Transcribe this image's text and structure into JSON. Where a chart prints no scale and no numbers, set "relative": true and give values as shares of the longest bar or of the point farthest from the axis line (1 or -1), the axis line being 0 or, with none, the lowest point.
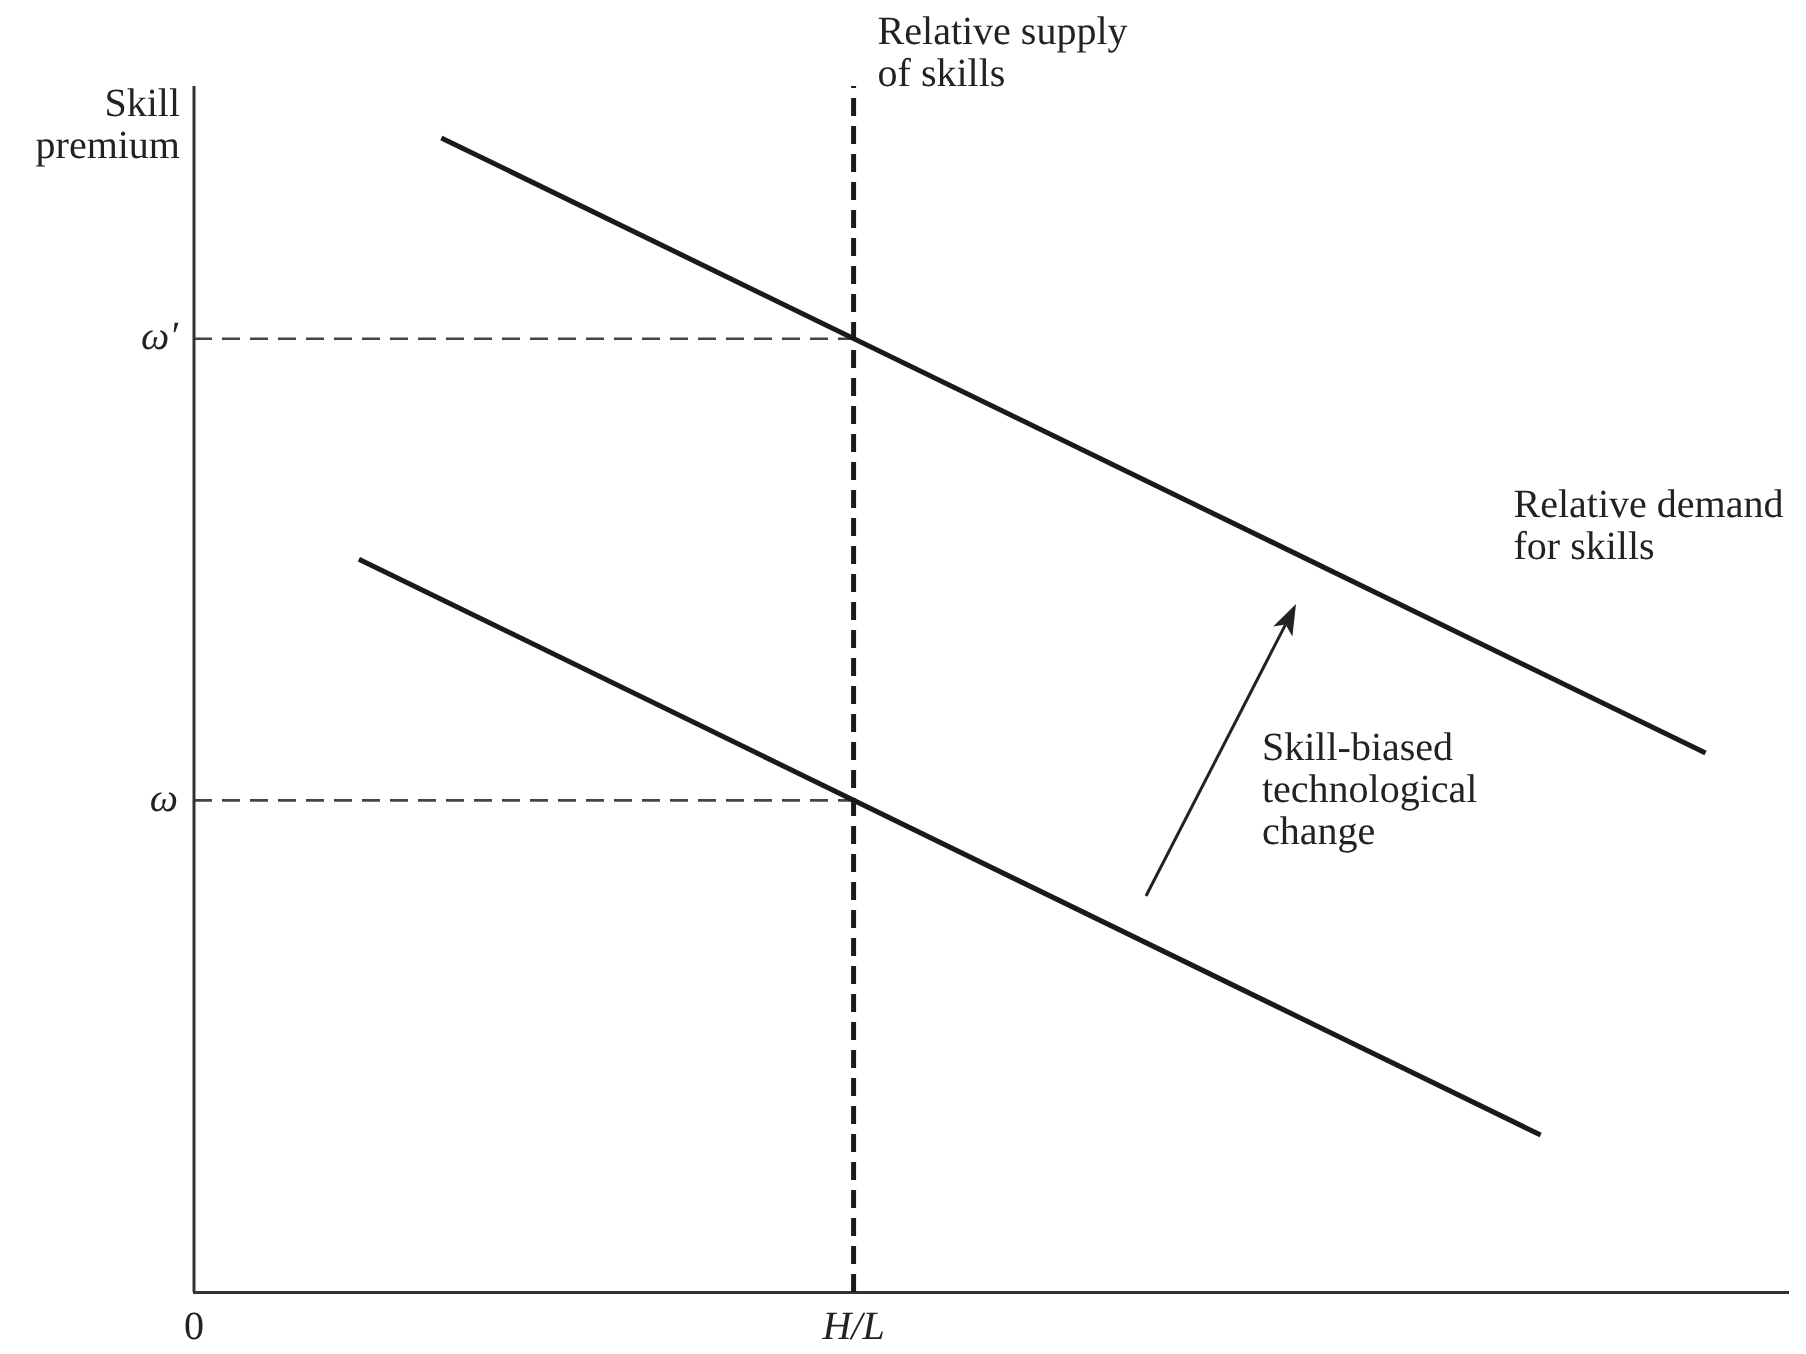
{
  "chart_data": {
    "type": "line",
    "ylabel": "Skill premium",
    "relative": true,
    "marker": "none",
    "categories": [
      "0",
      null,
      null,
      null,
      null,
      null,
      null,
      null,
      null,
      null,
      null,
      null,
      null,
      null,
      null,
      null,
      null,
      null,
      null,
      null,
      null,
      null,
      null,
      null,
      "H/L",
      null,
      null,
      null,
      null,
      null,
      null,
      null,
      null,
      null,
      null,
      null,
      null,
      null,
      null,
      null,
      null,
      null,
      null,
      null,
      null,
      null,
      null,
      null,
      null,
      null,
      null,
      null,
      null,
      null,
      null,
      null,
      null,
      null,
      null
    ],
    "annotations": [
      "Skill-biased technological change"
    ],
    "ref_lines": [
      {
        "axis": "x",
        "value": "H/L",
        "label": "Relative supply of skills",
        "line_style": "dashed",
        "color": "#1a1a1a"
      }
    ],
    "series": [
      {
        "name": "Relative demand for skills",
        "color": "#1a1a1a",
        "values": [
          null,
          null,
          null,
          null,
          null,
          null,
          null,
          null,
          null,
          1,
          null,
          null,
          null,
          null,
          null,
          null,
          null,
          null,
          null,
          null,
          null,
          null,
          null,
          null,
          null,
          null,
          null,
          null,
          null,
          null,
          null,
          null,
          null,
          null,
          null,
          null,
          null,
          null,
          null,
          null,
          null,
          null,
          null,
          null,
          null,
          null,
          null,
          null,
          null,
          null,
          null,
          null,
          null,
          null,
          null,
          0.467,
          null,
          null,
          null
        ]
      },
      {
        "color": "#1a1a1a",
        "values": [
          null,
          null,
          null,
          null,
          null,
          null,
          0.635,
          null,
          null,
          null,
          null,
          null,
          null,
          null,
          null,
          null,
          null,
          null,
          null,
          null,
          null,
          null,
          null,
          null,
          null,
          null,
          null,
          null,
          null,
          null,
          null,
          null,
          null,
          null,
          null,
          null,
          null,
          null,
          null,
          null,
          null,
          null,
          null,
          null,
          null,
          null,
          null,
          null,
          null,
          0.136,
          null,
          null,
          null,
          null,
          null,
          null,
          null,
          null,
          null
        ]
      },
      {
        "name": "ω′",
        "color": "#444444",
        "line_style": "dashed",
        "values": [
          0.826,
          null,
          null,
          null,
          null,
          null,
          null,
          null,
          null,
          null,
          null,
          null,
          null,
          null,
          null,
          null,
          null,
          null,
          null,
          null,
          null,
          null,
          null,
          null,
          0.826,
          null,
          null,
          null,
          null,
          null,
          null,
          null,
          null,
          null,
          null,
          null,
          null,
          null,
          null,
          null,
          null,
          null,
          null,
          null,
          null,
          null,
          null,
          null,
          null,
          null,
          null,
          null,
          null,
          null,
          null,
          null,
          null,
          null,
          null
        ]
      },
      {
        "name": "ω",
        "color": "#444444",
        "line_style": "dashed",
        "values": [
          0.426,
          null,
          null,
          null,
          null,
          null,
          null,
          null,
          null,
          null,
          null,
          null,
          null,
          null,
          null,
          null,
          null,
          null,
          null,
          null,
          null,
          null,
          null,
          null,
          0.426,
          null,
          null,
          null,
          null,
          null,
          null,
          null,
          null,
          null,
          null,
          null,
          null,
          null,
          null,
          null,
          null,
          null,
          null,
          null,
          null,
          null,
          null,
          null,
          null,
          null,
          null,
          null,
          null,
          null,
          null,
          null,
          null,
          null,
          null
        ]
      }
    ]
  }
}
